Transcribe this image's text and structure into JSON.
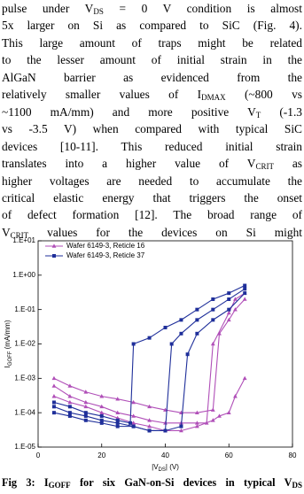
{
  "text": {
    "lines": [
      [
        "pulse under V",
        {
          "text": "DS",
          "sub": true
        },
        " = 0 V condition is almost"
      ],
      [
        "5x larger on Si as compared to SiC (Fig. 4)."
      ],
      [
        "This large amount of traps might be related"
      ],
      [
        "to the lesser amount of initial strain in the"
      ],
      [
        "AlGaN barrier as evidenced from the"
      ],
      [
        "relatively smaller values of I",
        {
          "text": "DMAX",
          "sub": true
        },
        " (~800 vs"
      ],
      [
        "~1100 mA/mm) and more positive V",
        {
          "text": "T",
          "sub": true
        },
        " (-1.3"
      ],
      [
        "vs -3.5 V) when compared with typical SiC"
      ],
      [
        "devices [10-11]. This reduced initial strain"
      ],
      [
        "translates into a higher value of V",
        {
          "text": "CRIT",
          "sub": true
        },
        " as"
      ],
      [
        "higher voltages are needed to accumulate the"
      ],
      [
        "critical elastic energy that triggers the onset"
      ],
      [
        "of defect formation [12]. The broad range of"
      ],
      [
        "V",
        {
          "text": "CRIT",
          "sub": true
        },
        " values for the devices on Si might"
      ]
    ]
  },
  "chart_data": {
    "type": "line",
    "xlabel": [
      "|V",
      {
        "text": "DS",
        "sub": true
      },
      "| (V)"
    ],
    "ylabel": [
      "I",
      {
        "text": "GOFF",
        "sub": true
      },
      " (mA/mm)"
    ],
    "xlim": [
      0,
      80
    ],
    "xticks": [
      0,
      20,
      40,
      60,
      80
    ],
    "ylim": [
      1e-05,
      10
    ],
    "log_y": true,
    "yticks": [
      {
        "value": 1e-05,
        "label": "1.E-05"
      },
      {
        "value": 0.0001,
        "label": "1.E-04"
      },
      {
        "value": 0.001,
        "label": "1.E-03"
      },
      {
        "value": 0.01,
        "label": "1.E-02"
      },
      {
        "value": 0.1,
        "label": "1.E-01"
      },
      {
        "value": 1,
        "label": "1.E+00"
      },
      {
        "value": 10,
        "label": "1.E+01"
      }
    ],
    "legend": "upper left",
    "series": [
      {
        "name": "Wafer 6149-3, Reticle 16",
        "color": "#b04fb8",
        "marker": "triangle",
        "x": [
          5,
          10,
          15,
          20,
          25,
          30,
          35,
          40,
          45,
          50,
          55,
          57,
          60,
          62,
          65
        ],
        "values": [
          0.001,
          0.0006,
          0.0004,
          0.0003,
          0.00025,
          0.0002,
          0.00015,
          0.00012,
          0.0001,
          0.0001,
          0.00012,
          0.02,
          0.05,
          0.1,
          0.2
        ]
      },
      {
        "name": "Wafer 6149-3, Reticle 16",
        "color": "#b04fb8",
        "marker": "triangle",
        "x": [
          5,
          10,
          15,
          20,
          25,
          30,
          35,
          40,
          45,
          50,
          53,
          55,
          60,
          62,
          65
        ],
        "values": [
          0.0006,
          0.0003,
          0.0002,
          0.00015,
          0.0001,
          8e-05,
          6e-05,
          5e-05,
          5e-05,
          5e-05,
          5e-05,
          0.01,
          0.08,
          0.2,
          0.3
        ]
      },
      {
        "name": "Wafer 6149-3, Reticle 16",
        "color": "#b04fb8",
        "marker": "triangle",
        "x": [
          5,
          10,
          15,
          20,
          25,
          30,
          35,
          40,
          45,
          50,
          55,
          57,
          60,
          62,
          65
        ],
        "values": [
          0.0003,
          0.0002,
          0.00015,
          0.0001,
          7e-05,
          5e-05,
          4e-05,
          3e-05,
          3e-05,
          4e-05,
          6e-05,
          8e-05,
          0.0001,
          0.0003,
          0.001
        ]
      },
      {
        "name": "Wafer 6149-3, Reticle 37",
        "color": "#1f2f9a",
        "marker": "square",
        "x": [
          5,
          10,
          15,
          20,
          25,
          29,
          30,
          35,
          40,
          45,
          50,
          55,
          60,
          65
        ],
        "values": [
          0.0002,
          0.00015,
          0.0001,
          8e-05,
          6e-05,
          5e-05,
          0.01,
          0.015,
          0.03,
          0.05,
          0.1,
          0.2,
          0.3,
          0.5
        ]
      },
      {
        "name": "Wafer 6149-3, Reticle 37",
        "color": "#1f2f9a",
        "marker": "square",
        "x": [
          5,
          10,
          15,
          20,
          25,
          30,
          35,
          40,
          42,
          45,
          50,
          55,
          60,
          65
        ],
        "values": [
          0.00015,
          0.0001,
          8e-05,
          6e-05,
          5e-05,
          4e-05,
          3e-05,
          3e-05,
          0.01,
          0.02,
          0.05,
          0.1,
          0.2,
          0.4
        ]
      },
      {
        "name": "Wafer 6149-3, Reticle 37",
        "color": "#1f2f9a",
        "marker": "square",
        "x": [
          5,
          10,
          15,
          20,
          25,
          30,
          35,
          40,
          45,
          47,
          50,
          55,
          60,
          65
        ],
        "values": [
          0.0001,
          8e-05,
          6e-05,
          5e-05,
          4e-05,
          4e-05,
          3e-05,
          3e-05,
          4e-05,
          0.005,
          0.02,
          0.05,
          0.1,
          0.3
        ]
      }
    ]
  },
  "caption": [
    "Fig 3: I",
    {
      "text": "GOFF",
      "sub": true
    },
    " for six GaN-on-Si devices in typical V",
    {
      "text": "DS",
      "sub": true
    }
  ]
}
